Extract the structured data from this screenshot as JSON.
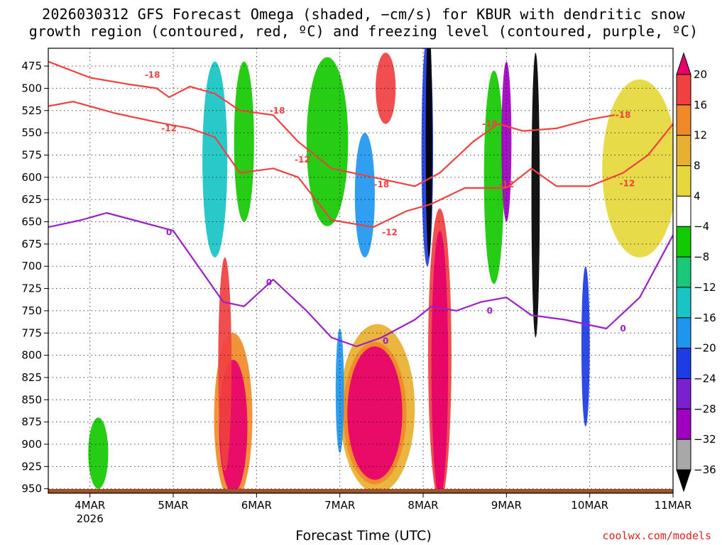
{
  "chart_data": {
    "type": "heatmap",
    "title_line1": "2026030312 GFS Forecast Omega (shaded, −cm/s) for KBUR with dendritic snow",
    "title_line2": "growth region (contoured, red, ºC) and freezing level (contoured, purple, ºC)",
    "xlabel": "Forecast Time (UTC)",
    "credit": "coolwx.com/models",
    "y_ticks": [
      475,
      500,
      525,
      550,
      575,
      600,
      625,
      650,
      675,
      700,
      725,
      750,
      775,
      800,
      825,
      850,
      875,
      900,
      925,
      950
    ],
    "ylim": [
      455,
      955
    ],
    "xlim": [
      3.5,
      11.0
    ],
    "x_ticks": [
      {
        "day": 4,
        "label": "4MAR",
        "sub": "2026"
      },
      {
        "day": 5,
        "label": "5MAR",
        "sub": ""
      },
      {
        "day": 6,
        "label": "6MAR",
        "sub": ""
      },
      {
        "day": 7,
        "label": "7MAR",
        "sub": ""
      },
      {
        "day": 8,
        "label": "8MAR",
        "sub": ""
      },
      {
        "day": 9,
        "label": "9MAR",
        "sub": ""
      },
      {
        "day": 10,
        "label": "10MAR",
        "sub": ""
      },
      {
        "day": 11,
        "label": "11MAR",
        "sub": ""
      }
    ],
    "colorbar": {
      "labels": [
        "20",
        "16",
        "12",
        "8",
        "4",
        "−4",
        "−8",
        "−12",
        "−16",
        "−20",
        "−24",
        "−28",
        "−32",
        "−36"
      ],
      "colors": [
        "#e8006e",
        "#f04040",
        "#f08a28",
        "#e8b030",
        "#e6d83a",
        "#ffffff",
        "#13c900",
        "#19c878",
        "#18c4c4",
        "#1e96f0",
        "#1c3ce6",
        "#7a20d0",
        "#a000c0",
        "#a8a8a8",
        "#000000"
      ]
    },
    "omega_blobs": [
      {
        "day": 5.72,
        "p": 870,
        "rx": 0.23,
        "ry": 95,
        "c": "#f08a28"
      },
      {
        "day": 5.72,
        "p": 880,
        "rx": 0.17,
        "ry": 75,
        "c": "#e8006e"
      },
      {
        "day": 5.62,
        "p": 810,
        "rx": 0.08,
        "ry": 120,
        "c": "#f04040"
      },
      {
        "day": 7.45,
        "p": 860,
        "rx": 0.45,
        "ry": 95,
        "c": "#e8b030"
      },
      {
        "day": 7.42,
        "p": 865,
        "rx": 0.38,
        "ry": 80,
        "c": "#f08a28"
      },
      {
        "day": 7.42,
        "p": 865,
        "rx": 0.33,
        "ry": 75,
        "c": "#e8006e"
      },
      {
        "day": 8.2,
        "p": 800,
        "rx": 0.14,
        "ry": 165,
        "c": "#f04040"
      },
      {
        "day": 8.2,
        "p": 810,
        "rx": 0.1,
        "ry": 150,
        "c": "#e8006e"
      },
      {
        "day": 5.5,
        "p": 580,
        "rx": 0.15,
        "ry": 110,
        "c": "#18c4c4"
      },
      {
        "day": 5.85,
        "p": 560,
        "rx": 0.12,
        "ry": 90,
        "c": "#13c900"
      },
      {
        "day": 6.85,
        "p": 560,
        "rx": 0.25,
        "ry": 95,
        "c": "#13c900"
      },
      {
        "day": 7.3,
        "p": 620,
        "rx": 0.12,
        "ry": 70,
        "c": "#1e96f0"
      },
      {
        "day": 7.55,
        "p": 500,
        "rx": 0.12,
        "ry": 40,
        "c": "#f04040"
      },
      {
        "day": 8.05,
        "p": 570,
        "rx": 0.07,
        "ry": 130,
        "c": "#1c3ce6"
      },
      {
        "day": 8.07,
        "p": 560,
        "rx": 0.04,
        "ry": 130,
        "c": "#000000"
      },
      {
        "day": 8.85,
        "p": 600,
        "rx": 0.12,
        "ry": 120,
        "c": "#13c900"
      },
      {
        "day": 9.0,
        "p": 560,
        "rx": 0.06,
        "ry": 90,
        "c": "#a000c0"
      },
      {
        "day": 9.35,
        "p": 620,
        "rx": 0.05,
        "ry": 160,
        "c": "#000000"
      },
      {
        "day": 9.95,
        "p": 790,
        "rx": 0.05,
        "ry": 90,
        "c": "#1c3ce6"
      },
      {
        "day": 10.6,
        "p": 590,
        "rx": 0.45,
        "ry": 100,
        "c": "#e6d83a"
      },
      {
        "day": 4.1,
        "p": 910,
        "rx": 0.12,
        "ry": 40,
        "c": "#13c900"
      },
      {
        "day": 7.0,
        "p": 840,
        "rx": 0.05,
        "ry": 70,
        "c": "#1e96f0"
      }
    ],
    "contours": [
      {
        "value": "-18",
        "color": "#f04040",
        "points": [
          [
            3.5,
            470
          ],
          [
            4.0,
            488
          ],
          [
            4.5,
            496
          ],
          [
            4.8,
            500
          ],
          [
            4.95,
            510
          ],
          [
            5.2,
            498
          ],
          [
            5.5,
            506
          ],
          [
            5.8,
            525
          ],
          [
            6.2,
            530
          ],
          [
            6.5,
            560
          ],
          [
            6.9,
            590
          ],
          [
            7.5,
            602
          ],
          [
            7.9,
            610
          ],
          [
            8.2,
            595
          ],
          [
            8.6,
            560
          ],
          [
            8.9,
            540
          ],
          [
            9.2,
            548
          ],
          [
            9.6,
            545
          ],
          [
            10.0,
            535
          ],
          [
            10.3,
            530
          ]
        ]
      },
      {
        "value": "-12",
        "color": "#f04040",
        "points": [
          [
            3.5,
            520
          ],
          [
            3.8,
            515
          ],
          [
            4.3,
            528
          ],
          [
            4.8,
            538
          ],
          [
            5.2,
            545
          ],
          [
            5.5,
            555
          ],
          [
            5.8,
            595
          ],
          [
            6.2,
            590
          ],
          [
            6.5,
            600
          ],
          [
            6.9,
            648
          ],
          [
            7.4,
            656
          ],
          [
            7.8,
            638
          ],
          [
            8.1,
            630
          ],
          [
            8.5,
            612
          ],
          [
            9.0,
            612
          ],
          [
            9.3,
            590
          ],
          [
            9.6,
            610
          ],
          [
            10.0,
            610
          ],
          [
            10.4,
            595
          ],
          [
            10.7,
            575
          ],
          [
            11.0,
            540
          ]
        ]
      },
      {
        "value": "0",
        "color": "#9b1fc7",
        "points": [
          [
            3.5,
            656
          ],
          [
            3.9,
            648
          ],
          [
            4.2,
            640
          ],
          [
            4.6,
            650
          ],
          [
            5.0,
            660
          ],
          [
            5.3,
            700
          ],
          [
            5.6,
            740
          ],
          [
            5.85,
            745
          ],
          [
            6.2,
            715
          ],
          [
            6.6,
            750
          ],
          [
            6.9,
            780
          ],
          [
            7.2,
            790
          ],
          [
            7.5,
            780
          ],
          [
            7.9,
            760
          ],
          [
            8.1,
            745
          ],
          [
            8.4,
            750
          ],
          [
            8.7,
            740
          ],
          [
            9.0,
            735
          ],
          [
            9.3,
            755
          ],
          [
            9.7,
            760
          ],
          [
            10.2,
            770
          ],
          [
            10.6,
            735
          ],
          [
            11.0,
            665
          ]
        ]
      }
    ],
    "contour_labels": [
      {
        "day": 4.75,
        "p": 485,
        "text": "-18",
        "color": "#f04040"
      },
      {
        "day": 6.25,
        "p": 525,
        "text": "-18",
        "color": "#f04040"
      },
      {
        "day": 7.5,
        "p": 608,
        "text": "-18",
        "color": "#f04040"
      },
      {
        "day": 8.8,
        "p": 540,
        "text": "-18",
        "color": "#f04040"
      },
      {
        "day": 10.4,
        "p": 530,
        "text": "-18",
        "color": "#f04040"
      },
      {
        "day": 4.95,
        "p": 545,
        "text": "-12",
        "color": "#f04040"
      },
      {
        "day": 6.55,
        "p": 580,
        "text": "-12",
        "color": "#f04040"
      },
      {
        "day": 7.6,
        "p": 662,
        "text": "-12",
        "color": "#f04040"
      },
      {
        "day": 9.0,
        "p": 608,
        "text": "-12",
        "color": "#f04040"
      },
      {
        "day": 10.45,
        "p": 607,
        "text": "-12",
        "color": "#f04040"
      },
      {
        "day": 4.95,
        "p": 662,
        "text": "0",
        "color": "#9b1fc7"
      },
      {
        "day": 6.15,
        "p": 718,
        "text": "0",
        "color": "#9b1fc7"
      },
      {
        "day": 7.55,
        "p": 784,
        "text": "0",
        "color": "#9b1fc7"
      },
      {
        "day": 8.8,
        "p": 750,
        "text": "0",
        "color": "#9b1fc7"
      },
      {
        "day": 10.4,
        "p": 770,
        "text": "0",
        "color": "#9b1fc7"
      }
    ]
  }
}
